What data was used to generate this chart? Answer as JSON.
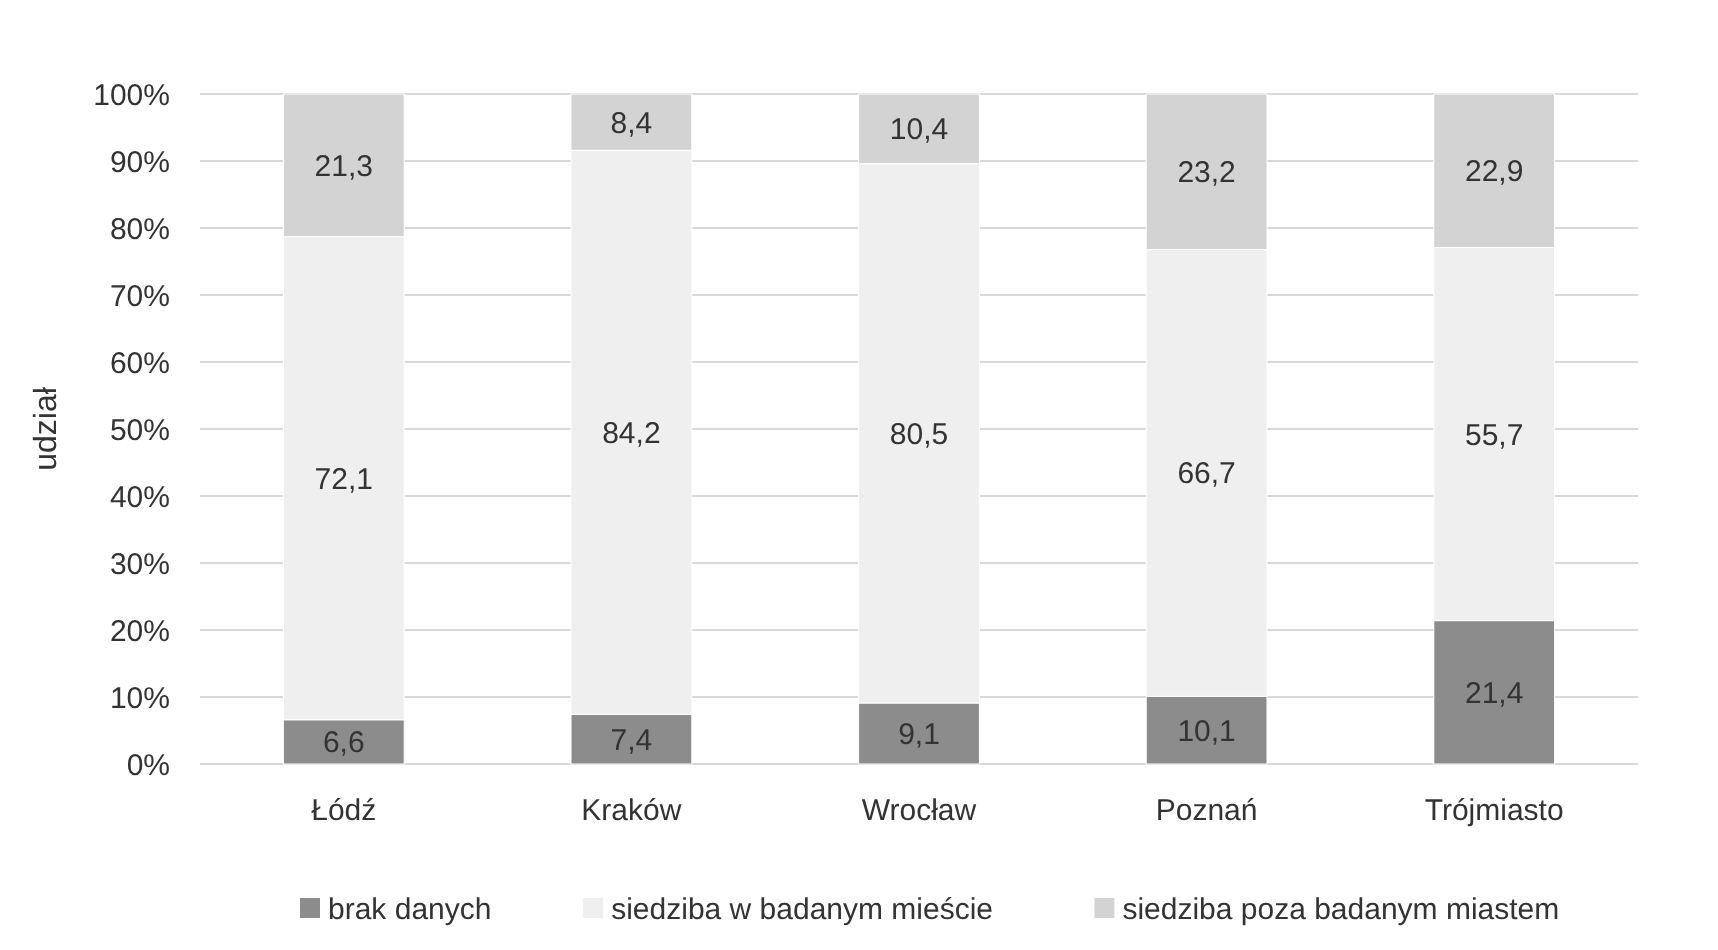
{
  "chart_data": {
    "type": "bar",
    "stacked": true,
    "ylabel": "udział",
    "categories": [
      "Łódź",
      "Kraków",
      "Wrocław",
      "Poznań",
      "Trójmiasto"
    ],
    "series": [
      {
        "name": "brak danych",
        "color": "#8c8c8c",
        "values": [
          6.6,
          7.4,
          9.1,
          10.1,
          21.4
        ],
        "value_labels": [
          "6,6",
          "7,4",
          "9,1",
          "10,1",
          "21,4"
        ]
      },
      {
        "name": "siedziba w badanym mieście",
        "color": "#efefef",
        "values": [
          72.1,
          84.2,
          80.5,
          66.7,
          55.7
        ],
        "value_labels": [
          "72,1",
          "84,2",
          "80,5",
          "66,7",
          "55,7"
        ]
      },
      {
        "name": "siedziba poza badanym miastem",
        "color": "#d3d3d3",
        "values": [
          21.3,
          8.4,
          10.4,
          23.2,
          22.9
        ],
        "value_labels": [
          "21,3",
          "8,4",
          "10,4",
          "23,2",
          "22,9"
        ]
      }
    ],
    "ylim": [
      0,
      100
    ],
    "yticks": [
      {
        "value": 0,
        "label": "0%"
      },
      {
        "value": 10,
        "label": "10%"
      },
      {
        "value": 20,
        "label": "20%"
      },
      {
        "value": 30,
        "label": "30%"
      },
      {
        "value": 40,
        "label": "40%"
      },
      {
        "value": 50,
        "label": "50%"
      },
      {
        "value": 60,
        "label": "60%"
      },
      {
        "value": 70,
        "label": "70%"
      },
      {
        "value": 80,
        "label": "80%"
      },
      {
        "value": 90,
        "label": "90%"
      },
      {
        "value": 100,
        "label": "100%"
      }
    ],
    "grid": "y",
    "legend": "bottom"
  }
}
